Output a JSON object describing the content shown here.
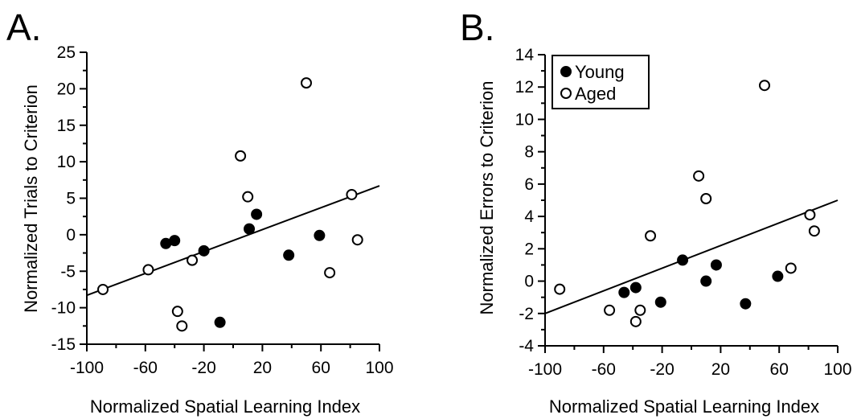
{
  "colors": {
    "ink": "#000000",
    "background": "#ffffff",
    "young_fill": "#000000",
    "aged_fill": "#ffffff"
  },
  "chart_data": [
    {
      "type": "scatter",
      "panel": "A.",
      "title": "",
      "xlabel": "Normalized Spatial Learning Index",
      "ylabel": "Normalized Trials to Criterion",
      "xlim": [
        -100,
        100
      ],
      "ylim": [
        -15,
        25
      ],
      "xticks": [
        "-100",
        "-60",
        "-20",
        "20",
        "60",
        "100"
      ],
      "yticks": [
        "-15",
        "-10",
        "-5",
        "0",
        "5",
        "10",
        "15",
        "20",
        "25"
      ],
      "grid": false,
      "legend": "none",
      "series": [
        {
          "name": "Young",
          "marker": "filled-circle",
          "x": [
            -46,
            -40,
            -20,
            -9,
            11,
            16,
            38,
            59
          ],
          "y": [
            -1.2,
            -0.8,
            -2.2,
            -12,
            0.8,
            2.8,
            -2.8,
            -0.1
          ]
        },
        {
          "name": "Aged",
          "marker": "open-circle",
          "x": [
            -89,
            -58,
            -38,
            -35,
            -28,
            5,
            10,
            50,
            66,
            81,
            85
          ],
          "y": [
            -7.5,
            -4.8,
            -10.5,
            -12.5,
            -3.5,
            10.8,
            5.2,
            20.8,
            -5.2,
            5.5,
            -0.7
          ]
        }
      ],
      "fit_line": {
        "x": [
          -100,
          100
        ],
        "y": [
          -8.3,
          6.7
        ]
      }
    },
    {
      "type": "scatter",
      "panel": "B.",
      "title": "",
      "xlabel": "Normalized Spatial Learning Index",
      "ylabel": "Normalized Errors to Criterion",
      "xlim": [
        -100,
        100
      ],
      "ylim": [
        -4,
        14
      ],
      "xticks": [
        "-100",
        "-60",
        "-20",
        "20",
        "60",
        "100"
      ],
      "yticks": [
        "-4",
        "-2",
        "0",
        "2",
        "4",
        "6",
        "8",
        "10",
        "12",
        "14"
      ],
      "grid": false,
      "legend": "top-left",
      "legend_entries": [
        "Young",
        "Aged"
      ],
      "series": [
        {
          "name": "Young",
          "marker": "filled-circle",
          "x": [
            -46,
            -38,
            -21,
            -6,
            10,
            17,
            37,
            59
          ],
          "y": [
            -0.7,
            -0.4,
            -1.3,
            1.3,
            0.0,
            1.0,
            -1.4,
            0.3
          ]
        },
        {
          "name": "Aged",
          "marker": "open-circle",
          "x": [
            -90,
            -56,
            -38,
            -35,
            -28,
            5,
            10,
            50,
            68,
            81,
            84
          ],
          "y": [
            -0.5,
            -1.8,
            -2.5,
            -1.8,
            2.8,
            6.5,
            5.1,
            12.1,
            0.8,
            4.1,
            3.1
          ]
        }
      ],
      "fit_line": {
        "x": [
          -100,
          100
        ],
        "y": [
          -2.0,
          5.0
        ]
      }
    }
  ]
}
